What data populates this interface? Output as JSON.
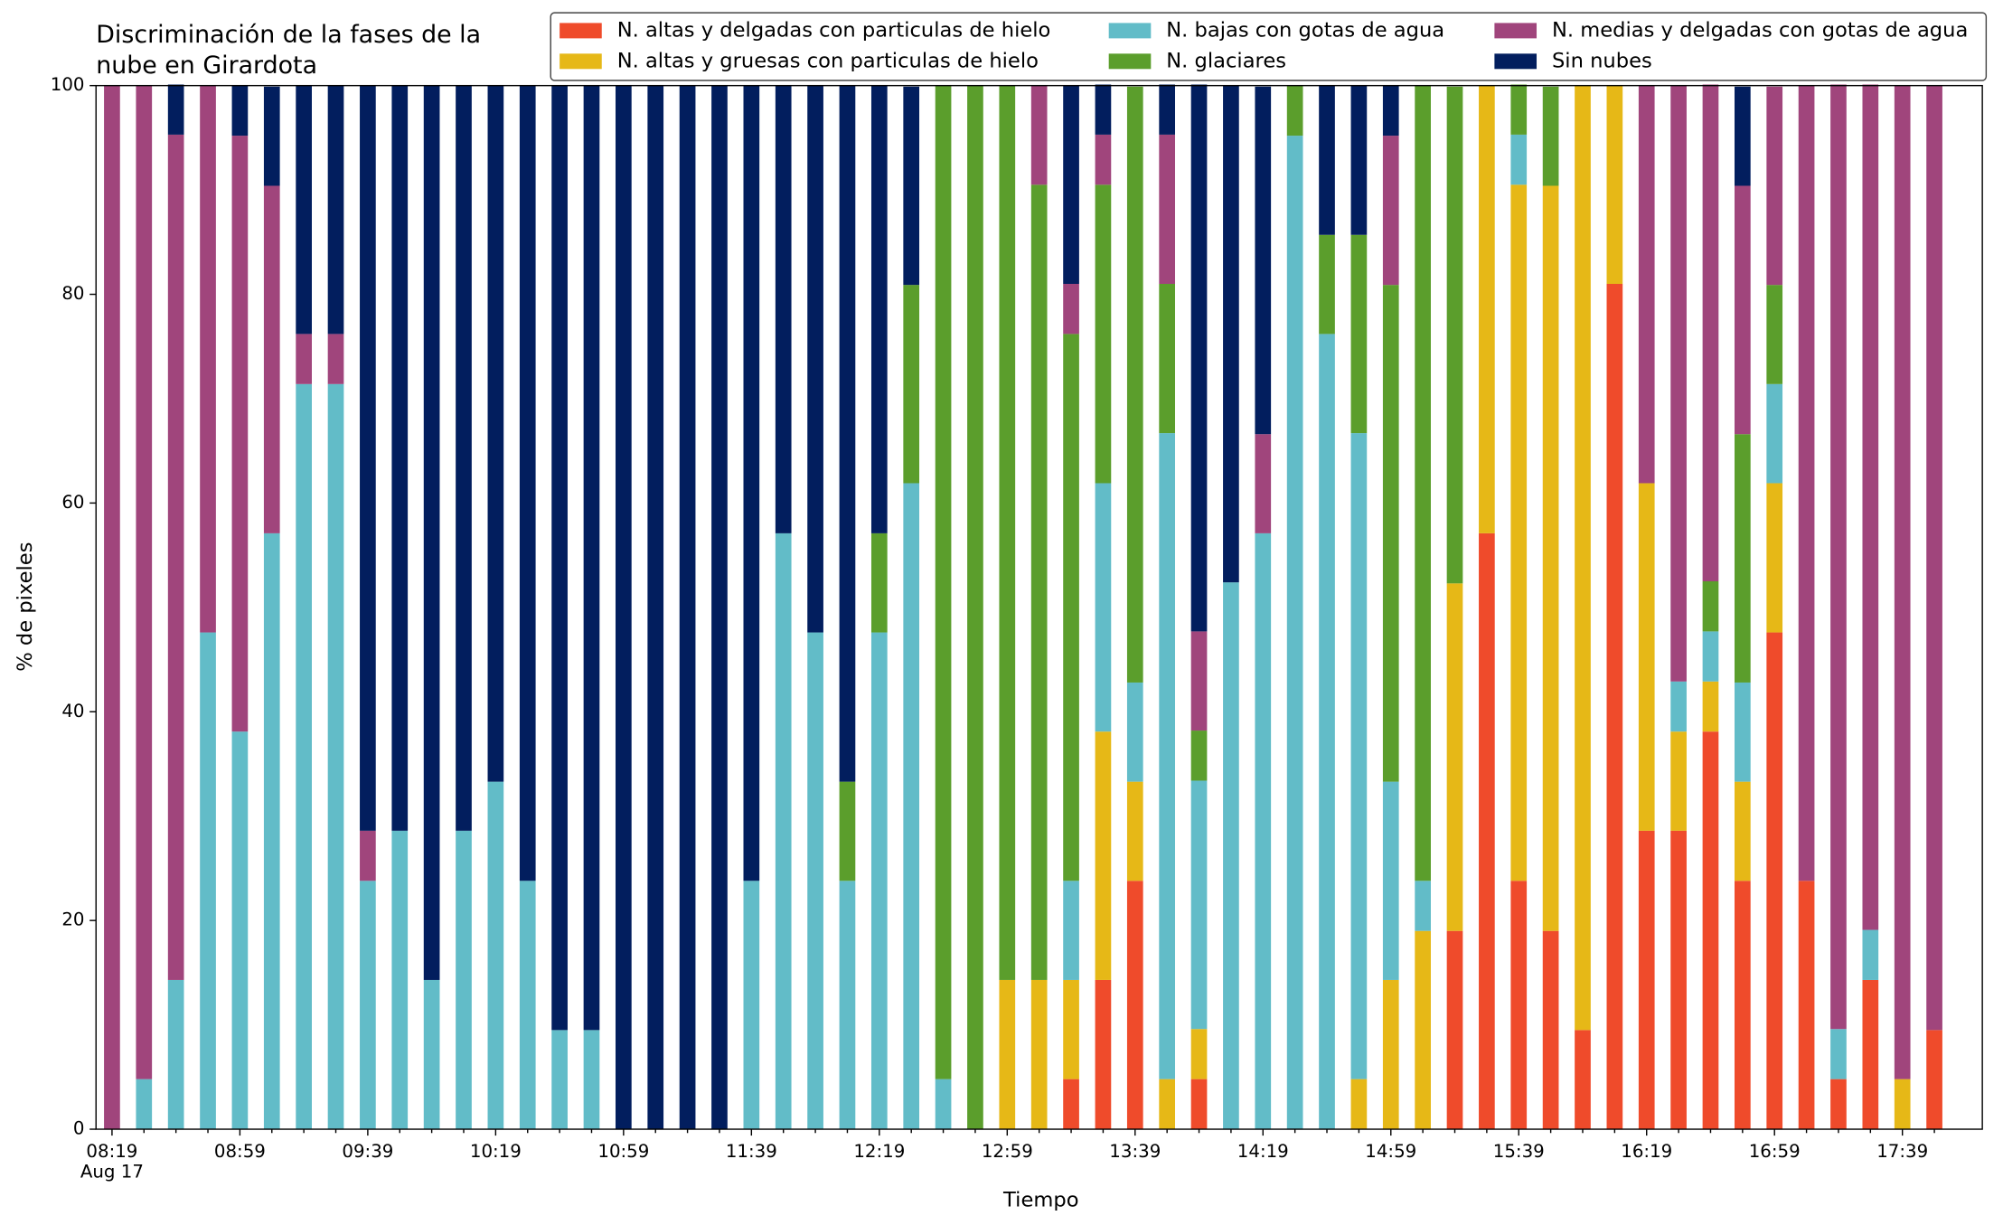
{
  "chart_data": {
    "type": "stacked_bar",
    "title": [
      "Discriminación de la fases de la",
      "nube en Girardota"
    ],
    "x_label": "Tiempo",
    "y_label": "% de pixeles",
    "x_date": "Aug 17",
    "categories": [
      "08:19",
      null,
      null,
      null,
      "08:59",
      null,
      null,
      null,
      "09:39",
      null,
      null,
      null,
      "10:19",
      null,
      null,
      null,
      "10:59",
      null,
      null,
      null,
      "11:39",
      null,
      null,
      null,
      "12:19",
      null,
      null,
      null,
      "12:59",
      null,
      null,
      null,
      "13:39",
      null,
      null,
      null,
      "14:19",
      null,
      null,
      null,
      "14:59",
      null,
      null,
      null,
      "15:39",
      null,
      null,
      null,
      "16:19",
      null,
      null,
      null,
      "16:59",
      null,
      null,
      null,
      "17:39",
      null
    ],
    "ylim": [
      0,
      100
    ],
    "yticks": [
      0,
      20,
      40,
      60,
      80,
      100
    ],
    "grid": false,
    "legend": "upper right",
    "series": [
      {
        "name": "N. altas y delgadas con particulas de hielo",
        "color": "#ef4b2b",
        "values": [
          0,
          0,
          0,
          0,
          0,
          0,
          0,
          0,
          0,
          0,
          0,
          0,
          0,
          0,
          0,
          0,
          0,
          0,
          0,
          0,
          0,
          0,
          0,
          0,
          0,
          0,
          0,
          0,
          0,
          0,
          4.8,
          14.3,
          23.8,
          0,
          4.8,
          0,
          0,
          0,
          0,
          0,
          0,
          0,
          19,
          57.1,
          23.8,
          19,
          9.5,
          81,
          28.6,
          28.6,
          38.1,
          23.8,
          47.6,
          23.8,
          4.8,
          14.3,
          0,
          9.5
        ]
      },
      {
        "name": "N. altas y gruesas con particulas de hielo",
        "color": "#e6b817",
        "values": [
          0,
          0,
          0,
          0,
          0,
          0,
          0,
          0,
          0,
          0,
          0,
          0,
          0,
          0,
          0,
          0,
          0,
          0,
          0,
          0,
          0,
          0,
          0,
          0,
          0,
          0,
          0,
          0,
          14.3,
          14.3,
          9.5,
          23.8,
          9.5,
          4.8,
          4.8,
          0,
          0,
          0,
          0,
          4.8,
          14.3,
          19,
          33.3,
          42.9,
          66.7,
          71.4,
          90.5,
          19,
          33.3,
          9.5,
          4.8,
          9.5,
          14.3,
          0,
          0,
          0,
          4.8,
          0
        ]
      },
      {
        "name": "N. bajas con gotas de agua",
        "color": "#62bcc8",
        "values": [
          0,
          4.8,
          14.3,
          47.6,
          38.1,
          57.1,
          71.4,
          71.4,
          23.8,
          28.6,
          14.3,
          28.6,
          33.3,
          23.8,
          9.5,
          9.5,
          0,
          0,
          0,
          0,
          23.8,
          57.1,
          47.6,
          23.8,
          47.6,
          61.9,
          4.8,
          0,
          0,
          0,
          9.5,
          23.8,
          9.5,
          61.9,
          23.8,
          52.4,
          57.1,
          95.2,
          76.2,
          61.9,
          19,
          4.8,
          0,
          0,
          4.8,
          0,
          0,
          0,
          0,
          4.8,
          4.8,
          9.5,
          9.5,
          0,
          4.8,
          4.8,
          0,
          0
        ]
      },
      {
        "name": "N. glaciares",
        "color": "#5b9e2c",
        "values": [
          0,
          0,
          0,
          0,
          0,
          0,
          0,
          0,
          0,
          0,
          0,
          0,
          0,
          0,
          0,
          0,
          0,
          0,
          0,
          0,
          0,
          0,
          0,
          9.5,
          9.5,
          19,
          95.2,
          100,
          85.7,
          76.2,
          52.4,
          28.6,
          57.1,
          14.3,
          4.8,
          0,
          0,
          4.8,
          9.5,
          19,
          47.6,
          76.2,
          47.6,
          0,
          4.8,
          9.5,
          0,
          0,
          0,
          0,
          4.8,
          23.8,
          9.5,
          0,
          0,
          0,
          0,
          0
        ]
      },
      {
        "name": "N. medias y delgadas con gotas de agua",
        "color": "#a0457c",
        "values": [
          100,
          95.2,
          81,
          52.4,
          57.1,
          33.3,
          4.8,
          4.8,
          4.8,
          0,
          0,
          0,
          0,
          0,
          0,
          0,
          0,
          0,
          0,
          0,
          0,
          0,
          0,
          0,
          0,
          0,
          0,
          0,
          0,
          9.5,
          4.8,
          4.8,
          0,
          14.3,
          9.5,
          0,
          9.5,
          0,
          0,
          0,
          14.3,
          0,
          0,
          0,
          0,
          0,
          0,
          0,
          38.1,
          57.1,
          47.6,
          23.8,
          19,
          76.2,
          90.5,
          81,
          95.2,
          90.5
        ]
      },
      {
        "name": "Sin nubes",
        "color": "#021e5e",
        "values": [
          0,
          0,
          4.8,
          0,
          4.8,
          9.5,
          23.8,
          23.8,
          71.4,
          71.4,
          85.7,
          71.4,
          66.7,
          76.2,
          90.5,
          90.5,
          100,
          100,
          100,
          100,
          76.2,
          42.9,
          52.4,
          66.7,
          42.9,
          19,
          0,
          0,
          0,
          0,
          19,
          4.8,
          0,
          4.8,
          52.4,
          47.6,
          33.3,
          0,
          14.3,
          14.3,
          4.8,
          0,
          0,
          0,
          0,
          0,
          0,
          0,
          0,
          0,
          0,
          9.5,
          0,
          0,
          0,
          0,
          0,
          0
        ]
      }
    ]
  }
}
